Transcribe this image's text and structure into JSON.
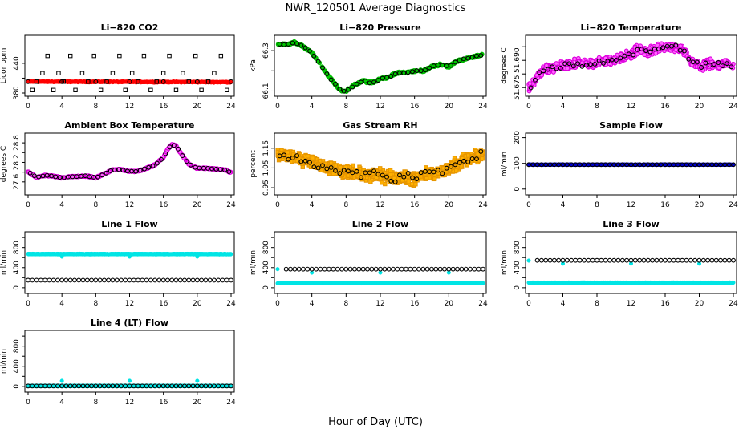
{
  "figure": {
    "title": "NWR_120501  Average Diagnostics",
    "xlabel": "Hour of Day (UTC)"
  },
  "chart_data": [
    {
      "id": "co2",
      "type": "scatter",
      "title": "Li−820 CO2",
      "ylabel": "Licor ppm",
      "xlim": [
        0,
        24
      ],
      "ylim": [
        380,
        490
      ],
      "yticks": [
        380,
        410,
        440
      ],
      "ytick_labels": [
        "380",
        "",
        "440"
      ],
      "xticks": [
        0,
        4,
        8,
        12,
        16,
        20,
        24
      ],
      "series": [
        {
          "shape": "dense",
          "color": "#ff0000",
          "x0": 0,
          "x1": 24,
          "y0": 403,
          "y1": 402,
          "jitter": 1.5,
          "n": 420
        },
        {
          "shape": "circle",
          "color": "#000000",
          "x": [
            0,
            4,
            8,
            12,
            16,
            20,
            24
          ],
          "y": [
            403,
            403,
            403,
            403,
            403,
            403,
            403
          ]
        },
        {
          "shape": "square",
          "color": "#000000",
          "x": [
            0.5,
            1,
            1.7,
            2.3,
            3,
            3.6,
            4.2,
            5,
            5.6,
            6.4,
            7.1,
            7.8,
            8.6,
            9.3,
            10,
            10.8,
            11.5,
            12.3,
            13,
            13.7,
            14.5,
            15.2,
            16,
            16.7,
            17.5,
            18.3,
            19,
            19.8,
            20.5,
            21.3,
            22,
            22.8,
            23.5
          ],
          "y": [
            386,
            403,
            420,
            455,
            386,
            420,
            403,
            455,
            386,
            420,
            403,
            455,
            386,
            403,
            420,
            455,
            386,
            420,
            403,
            455,
            386,
            403,
            420,
            455,
            386,
            420,
            403,
            455,
            386,
            403,
            420,
            455,
            386
          ]
        }
      ]
    },
    {
      "id": "pressure",
      "type": "scatter",
      "title": "Li−820 Pressure",
      "ylabel": "kPa",
      "xlim": [
        0,
        24
      ],
      "ylim": [
        66.09,
        66.36
      ],
      "yticks": [
        66.1,
        66.2,
        66.3
      ],
      "ytick_labels": [
        "66.1",
        "",
        "66.3"
      ],
      "xticks": [
        0,
        4,
        8,
        12,
        16,
        20,
        24
      ],
      "series": [
        {
          "shape": "circle",
          "color": "#00bb00",
          "fill": "#00cc00",
          "curve_x": [
            0,
            1,
            2,
            3,
            4,
            5,
            6,
            7,
            7.5,
            8,
            9,
            10,
            11,
            12,
            13,
            14,
            15,
            16,
            17,
            18,
            19,
            20,
            21,
            22,
            23,
            24
          ],
          "curve_y": [
            66.33,
            66.33,
            66.34,
            66.32,
            66.29,
            66.23,
            66.17,
            66.12,
            66.1,
            66.1,
            66.13,
            66.15,
            66.14,
            66.16,
            66.17,
            66.19,
            66.19,
            66.2,
            66.2,
            66.22,
            66.23,
            66.22,
            66.25,
            66.26,
            66.27,
            66.28
          ],
          "jitter": 0.007,
          "n": 380
        },
        {
          "shape": "circle",
          "color": "#000000",
          "on_curve": true,
          "step": 0.5,
          "jitter": 0.004
        }
      ]
    },
    {
      "id": "temp820",
      "type": "scatter",
      "title": "Li−820 Temperature",
      "ylabel": "degrees C",
      "xlim": [
        0,
        24
      ],
      "ylim": [
        51.673,
        51.693
      ],
      "yticks": [
        51.675,
        51.68,
        51.685,
        51.69
      ],
      "ytick_labels": [
        "51.675",
        "",
        "51.690",
        ""
      ],
      "xticks": [
        0,
        4,
        8,
        12,
        16,
        20,
        24
      ],
      "series": [
        {
          "shape": "circle",
          "color": "#dd00dd",
          "fill": "#ff66ff",
          "curve_x": [
            0,
            1,
            2,
            4,
            6,
            8,
            10,
            12,
            13,
            14,
            15,
            16,
            17,
            18,
            19,
            20,
            21,
            22,
            23,
            24
          ],
          "curve_y": [
            51.675,
            51.679,
            51.682,
            51.683,
            51.684,
            51.684,
            51.685,
            51.687,
            51.689,
            51.688,
            51.689,
            51.69,
            51.69,
            51.689,
            51.685,
            51.683,
            51.684,
            51.683,
            51.684,
            51.683
          ],
          "jitter": 0.0025,
          "n": 650
        },
        {
          "shape": "circle",
          "color": "#000000",
          "on_curve": true,
          "step": 0.5,
          "jitter": 0.0016
        }
      ]
    },
    {
      "id": "ambient",
      "type": "scatter",
      "title": "Ambient Box Temperature",
      "ylabel": "degrees C",
      "xlim": [
        0,
        24
      ],
      "ylim": [
        27.3,
        29.0
      ],
      "yticks": [
        27.6,
        27.9,
        28.2,
        28.5,
        28.8
      ],
      "ytick_labels": [
        "27.6",
        "",
        "28.2",
        "",
        "28.8"
      ],
      "xticks": [
        0,
        4,
        8,
        12,
        16,
        20,
        24
      ],
      "series": [
        {
          "shape": "circle",
          "color": "#dd00dd",
          "fill": "#ff66ff",
          "curve_x": [
            0,
            0.5,
            1,
            2,
            3,
            4,
            5,
            6,
            7,
            8,
            9,
            10,
            11,
            12,
            13,
            14,
            15,
            16,
            16.5,
            17,
            17.5,
            18,
            19,
            20,
            21,
            22,
            23,
            23.5,
            24
          ],
          "curve_y": [
            27.92,
            27.82,
            27.74,
            27.8,
            27.78,
            27.72,
            27.76,
            27.77,
            27.78,
            27.72,
            27.85,
            27.97,
            27.98,
            27.92,
            27.93,
            28.02,
            28.12,
            28.35,
            28.6,
            28.75,
            28.7,
            28.5,
            28.15,
            28.02,
            28.02,
            28.0,
            27.98,
            27.95,
            27.88
          ],
          "jitter": 0.025,
          "n": 520
        },
        {
          "shape": "circle",
          "color": "#000000",
          "on_curve": true,
          "step": 0.5,
          "jitter": 0.015
        }
      ]
    },
    {
      "id": "rh",
      "type": "scatter",
      "title": "Gas Stream RH",
      "ylabel": "percent",
      "xlim": [
        0,
        24
      ],
      "ylim": [
        0.93,
        1.21
      ],
      "yticks": [
        0.95,
        1.05,
        1.15
      ],
      "ytick_labels": [
        "0.95",
        "1.05",
        "1.15"
      ],
      "xticks": [
        0,
        4,
        8,
        12,
        16,
        20,
        24
      ],
      "series": [
        {
          "shape": "square",
          "color": "#e69500",
          "fill": "#ffb000",
          "curve_x": [
            0,
            2,
            4,
            6,
            8,
            10,
            12,
            14,
            16,
            18,
            20,
            22,
            24
          ],
          "curve_y": [
            1.12,
            1.1,
            1.08,
            1.05,
            1.03,
            1.02,
            1.01,
            1.0,
            1.0,
            1.02,
            1.05,
            1.09,
            1.12
          ],
          "jitter": 0.045,
          "n": 900
        },
        {
          "shape": "circle",
          "color": "#000000",
          "on_curve": true,
          "step": 0.5,
          "jitter": 0.04
        }
      ]
    },
    {
      "id": "sample",
      "type": "scatter",
      "title": "Sample Flow",
      "ylabel": "ml/min",
      "xlim": [
        0,
        24
      ],
      "ylim": [
        -10,
        205
      ],
      "yticks": [
        0,
        100,
        200
      ],
      "ytick_labels": [
        "0",
        "100",
        "200"
      ],
      "xticks": [
        0,
        4,
        8,
        12,
        16,
        20,
        24
      ],
      "series": [
        {
          "shape": "dense",
          "color": "#0000cc",
          "x0": 0,
          "x1": 24,
          "y0": 95,
          "y1": 95,
          "jitter": 1,
          "n": 300
        },
        {
          "shape": "circle",
          "color": "#000000",
          "x0": 0,
          "x1": 24,
          "step": 0.5,
          "y": 95
        }
      ]
    },
    {
      "id": "line1",
      "type": "scatter",
      "title": "Line 1 Flow",
      "ylabel": "ml/min",
      "xlim": [
        0,
        24
      ],
      "ylim": [
        -50,
        1050
      ],
      "yticks": [
        0,
        200,
        400,
        600,
        800,
        1000
      ],
      "ytick_labels": [
        "0",
        "",
        "400",
        "",
        "800",
        ""
      ],
      "xticks": [
        0,
        4,
        8,
        12,
        16,
        20,
        24
      ],
      "series": [
        {
          "shape": "dense",
          "color": "#00e5e5",
          "x0": 0,
          "x1": 24,
          "y0": 670,
          "y1": 670,
          "jitter": 8,
          "n": 600,
          "spikes_x": [
            4,
            12,
            20
          ],
          "spikes_y": [
            620,
            620,
            620
          ]
        },
        {
          "shape": "circle",
          "color": "#000000",
          "x0": 0,
          "x1": 24,
          "step": 0.5,
          "y": 150
        }
      ]
    },
    {
      "id": "line2",
      "type": "scatter",
      "title": "Line 2 Flow",
      "ylabel": "ml/min",
      "xlim": [
        0,
        24
      ],
      "ylim": [
        -50,
        1050
      ],
      "yticks": [
        0,
        200,
        400,
        600,
        800,
        1000
      ],
      "ytick_labels": [
        "0",
        "",
        "400",
        "",
        "800",
        ""
      ],
      "xticks": [
        0,
        4,
        8,
        12,
        16,
        20,
        24
      ],
      "series": [
        {
          "shape": "dense",
          "color": "#00e5e5",
          "x0": 0,
          "x1": 24,
          "y0": 90,
          "y1": 90,
          "jitter": 5,
          "n": 600,
          "spikes_x": [
            0,
            4,
            12,
            20
          ],
          "spikes_y": [
            370,
            300,
            300,
            300
          ]
        },
        {
          "shape": "circle",
          "color": "#000000",
          "x0": 1,
          "x1": 24,
          "step": 0.5,
          "y": 370
        }
      ]
    },
    {
      "id": "line3",
      "type": "scatter",
      "title": "Line 3 Flow",
      "ylabel": "ml/min",
      "xlim": [
        0,
        24
      ],
      "ylim": [
        -50,
        1050
      ],
      "yticks": [
        0,
        200,
        400,
        600,
        800,
        1000
      ],
      "ytick_labels": [
        "0",
        "",
        "400",
        "",
        "800",
        ""
      ],
      "xticks": [
        0,
        4,
        8,
        12,
        16,
        20,
        24
      ],
      "series": [
        {
          "shape": "dense",
          "color": "#00e5e5",
          "x0": 0,
          "x1": 24,
          "y0": 100,
          "y1": 100,
          "jitter": 5,
          "n": 600,
          "spikes_x": [
            0,
            4,
            12,
            20
          ],
          "spikes_y": [
            540,
            480,
            480,
            480
          ]
        },
        {
          "shape": "circle",
          "color": "#000000",
          "x0": 1,
          "x1": 24,
          "step": 0.5,
          "y": 545
        }
      ]
    },
    {
      "id": "line4",
      "type": "scatter",
      "title": "Line 4 (LT) Flow",
      "ylabel": "ml/min",
      "xlim": [
        0,
        24
      ],
      "ylim": [
        -50,
        1050
      ],
      "yticks": [
        0,
        200,
        400,
        600,
        800,
        1000
      ],
      "ytick_labels": [
        "0",
        "",
        "400",
        "",
        "800",
        ""
      ],
      "xticks": [
        0,
        4,
        8,
        12,
        16,
        20,
        24
      ],
      "series": [
        {
          "shape": "dense",
          "color": "#00e5e5",
          "x0": 0,
          "x1": 24,
          "y0": 10,
          "y1": 10,
          "jitter": 4,
          "n": 600,
          "spikes_x": [
            4,
            12,
            20
          ],
          "spikes_y": [
            110,
            110,
            110
          ]
        },
        {
          "shape": "circle",
          "color": "#000000",
          "x0": 0,
          "x1": 24,
          "step": 0.5,
          "y": 8
        }
      ]
    }
  ]
}
